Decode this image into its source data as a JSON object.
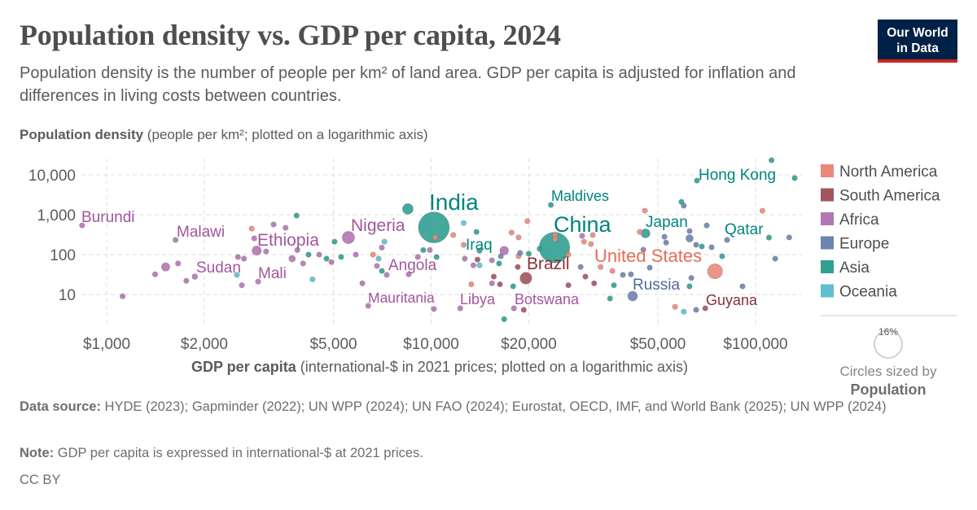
{
  "header": {
    "title": "Population density vs. GDP per capita, 2024",
    "subtitle": "Population density is the number of people per km² of land area. GDP per capita is adjusted for inflation and differences in living costs between countries.",
    "logo_line1": "Our World",
    "logo_line2": "in Data"
  },
  "chart_data": {
    "type": "scatter",
    "title": "Population density vs. GDP per capita, 2024",
    "ylabel_bold": "Population density",
    "ylabel_rest": " (people per km²; plotted on a logarithmic axis)",
    "xlabel_bold": "GDP per capita",
    "xlabel_rest": " (international-$ in 2021 prices; plotted on a logarithmic axis)",
    "x_scale": "log",
    "y_scale": "log",
    "xlim": [
      800,
      140000
    ],
    "ylim": [
      2,
      30000
    ],
    "grid": true,
    "x_ticks": [
      {
        "value": 1000,
        "label": "$1,000"
      },
      {
        "value": 2000,
        "label": "$2,000"
      },
      {
        "value": 5000,
        "label": "$5,000"
      },
      {
        "value": 10000,
        "label": "$10,000"
      },
      {
        "value": 20000,
        "label": "$20,000"
      },
      {
        "value": 50000,
        "label": "$50,000"
      },
      {
        "value": 100000,
        "label": "$100,000"
      }
    ],
    "y_ticks": [
      {
        "value": 10,
        "label": "10"
      },
      {
        "value": 100,
        "label": "100"
      },
      {
        "value": 1000,
        "label": "1,000"
      },
      {
        "value": 10000,
        "label": "10,000"
      }
    ],
    "legend_placement": "right",
    "legend": [
      {
        "region": "North America",
        "color": "#E8897A"
      },
      {
        "region": "South America",
        "color": "#A2545F"
      },
      {
        "region": "Africa",
        "color": "#B276B2"
      },
      {
        "region": "Europe",
        "color": "#6D83B0"
      },
      {
        "region": "Asia",
        "color": "#30A091"
      },
      {
        "region": "Oceania",
        "color": "#5FBFCD"
      }
    ],
    "label_colors": {
      "North America": "#E56E5A",
      "South America": "#883039",
      "Africa": "#A2559C",
      "Europe": "#4C6A9C",
      "Asia": "#00847E",
      "Oceania": "#2C8C9B"
    },
    "size_legend": {
      "value_label": "16%",
      "caption": "Circles sized by",
      "variable": "Population"
    },
    "labeled_points": [
      {
        "name": "Burundi",
        "region": "Africa",
        "gdp": 840,
        "density": 540,
        "pop": 14
      },
      {
        "name": "Malawi",
        "region": "Africa",
        "gdp": 1630,
        "density": 233,
        "pop": 21
      },
      {
        "name": "Ethiopia",
        "region": "Africa",
        "gdp": 2900,
        "density": 126,
        "pop": 132
      },
      {
        "name": "Sudan",
        "region": "Africa",
        "gdp": 1870,
        "density": 28,
        "pop": 50
      },
      {
        "name": "Mali",
        "region": "Africa",
        "gdp": 2930,
        "density": 21,
        "pop": 24
      },
      {
        "name": "Nigeria",
        "region": "Africa",
        "gdp": 5560,
        "density": 268,
        "pop": 233
      },
      {
        "name": "India",
        "region": "Asia",
        "gdp": 10200,
        "density": 480,
        "pop": 1451
      },
      {
        "name": "Angola",
        "region": "Africa",
        "gdp": 8530,
        "density": 32,
        "pop": 38
      },
      {
        "name": "Mauritania",
        "region": "Africa",
        "gdp": 6400,
        "density": 5.2,
        "pop": 5
      },
      {
        "name": "Libya",
        "region": "Africa",
        "gdp": 12300,
        "density": 4.5,
        "pop": 7
      },
      {
        "name": "Botswana",
        "region": "Africa",
        "gdp": 18000,
        "density": 4.5,
        "pop": 2.5
      },
      {
        "name": "Iraq",
        "region": "Asia",
        "gdp": 14100,
        "density": 126,
        "pop": 46
      },
      {
        "name": "Maldives",
        "region": "Asia",
        "gdp": 23400,
        "density": 1760,
        "pop": 0.5
      },
      {
        "name": "China",
        "region": "Asia",
        "gdp": 24000,
        "density": 150,
        "pop": 1419
      },
      {
        "name": "Brazil",
        "region": "South America",
        "gdp": 19600,
        "density": 25.6,
        "pop": 212
      },
      {
        "name": "Japan",
        "region": "Asia",
        "gdp": 45800,
        "density": 340,
        "pop": 124
      },
      {
        "name": "United States",
        "region": "North America",
        "gdp": 75000,
        "density": 38,
        "pop": 345
      },
      {
        "name": "Russia",
        "region": "Europe",
        "gdp": 41800,
        "density": 9.1,
        "pop": 145
      },
      {
        "name": "Guyana",
        "region": "South America",
        "gdp": 70000,
        "density": 4.5,
        "pop": 0.8
      },
      {
        "name": "Qatar",
        "region": "Asia",
        "gdp": 110000,
        "density": 268,
        "pop": 3
      },
      {
        "name": "Hong Kong",
        "region": "Asia",
        "gdp": 66000,
        "density": 7200,
        "pop": 7.5
      }
    ],
    "points": [
      [
        3850,
        950,
        "Asia",
        5
      ],
      [
        3270,
        570,
        "Africa",
        5
      ],
      [
        3560,
        470,
        "Africa",
        5
      ],
      [
        2800,
        450,
        "North America",
        11
      ],
      [
        2850,
        255,
        "Africa",
        5
      ],
      [
        3100,
        120,
        "Africa",
        5
      ],
      [
        3870,
        130,
        "Africa",
        5
      ],
      [
        5040,
        210,
        "Asia",
        5
      ],
      [
        4190,
        100,
        "Asia",
        5
      ],
      [
        4520,
        100,
        "Africa",
        5
      ],
      [
        4760,
        79,
        "Asia",
        5
      ],
      [
        4930,
        65,
        "Africa",
        5
      ],
      [
        5280,
        87,
        "Asia",
        12
      ],
      [
        5860,
        100,
        "Africa",
        12
      ],
      [
        3730,
        79,
        "Africa",
        68
      ],
      [
        4030,
        60,
        "Africa",
        5
      ],
      [
        2540,
        87,
        "Africa",
        5
      ],
      [
        2650,
        79,
        "Africa",
        5
      ],
      [
        1520,
        49,
        "Africa",
        109
      ],
      [
        1660,
        60,
        "Africa",
        5
      ],
      [
        1410,
        32,
        "Africa",
        5
      ],
      [
        1760,
        22,
        "Africa",
        5
      ],
      [
        2520,
        31,
        "Oceania",
        5
      ],
      [
        2610,
        17,
        "Africa",
        5
      ],
      [
        4310,
        24,
        "Oceania",
        2
      ],
      [
        6140,
        19,
        "Africa",
        5
      ],
      [
        1120,
        9,
        "Africa",
        5
      ],
      [
        6620,
        100,
        "North America",
        5
      ],
      [
        6890,
        79,
        "Oceania",
        1
      ],
      [
        7050,
        150,
        "Africa",
        5
      ],
      [
        7180,
        210,
        "Oceania",
        1
      ],
      [
        6810,
        52,
        "Africa",
        5
      ],
      [
        7050,
        39,
        "Asia",
        5
      ],
      [
        7300,
        31,
        "Africa",
        5
      ],
      [
        8480,
        1400,
        "Asia",
        173
      ],
      [
        9460,
        130,
        "Asia",
        5
      ],
      [
        9910,
        130,
        "Africa",
        5
      ],
      [
        10400,
        87,
        "Asia",
        5
      ],
      [
        9100,
        87,
        "Africa",
        5
      ],
      [
        10300,
        270,
        "North America",
        5
      ],
      [
        10200,
        4.3,
        "Africa",
        5
      ],
      [
        12600,
        620,
        "Oceania",
        1
      ],
      [
        11700,
        310,
        "North America",
        5
      ],
      [
        12600,
        175,
        "North America",
        5
      ],
      [
        12700,
        79,
        "Africa",
        5
      ],
      [
        13800,
        370,
        "Asia",
        30
      ],
      [
        13500,
        54,
        "Africa",
        14
      ],
      [
        14100,
        54,
        "Oceania",
        1
      ],
      [
        13900,
        75,
        "South America",
        5
      ],
      [
        15400,
        72,
        "Africa",
        5
      ],
      [
        16200,
        60,
        "Asia",
        40
      ],
      [
        16400,
        91,
        "Europe",
        5
      ],
      [
        16800,
        126,
        "Africa",
        116
      ],
      [
        17700,
        356,
        "North America",
        5
      ],
      [
        18600,
        270,
        "North America",
        5
      ],
      [
        19800,
        690,
        "North America",
        5
      ],
      [
        18600,
        91,
        "North America",
        5
      ],
      [
        18800,
        110,
        "Europe",
        5
      ],
      [
        20000,
        105,
        "Asia",
        5
      ],
      [
        21600,
        140,
        "Asia",
        34
      ],
      [
        18500,
        49,
        "South America",
        5
      ],
      [
        15600,
        28,
        "South America",
        5
      ],
      [
        15400,
        19,
        "Africa",
        5
      ],
      [
        16300,
        18,
        "South America",
        5
      ],
      [
        13300,
        18,
        "North America",
        5
      ],
      [
        17900,
        16,
        "Asia",
        5
      ],
      [
        16800,
        2.4,
        "Asia",
        3
      ],
      [
        19300,
        4.1,
        "South America",
        5
      ],
      [
        24100,
        310,
        "North America",
        5
      ],
      [
        24100,
        245,
        "North America",
        5
      ],
      [
        26500,
        100,
        "North America",
        5
      ],
      [
        29200,
        295,
        "Africa",
        1
      ],
      [
        31500,
        310,
        "North America",
        5
      ],
      [
        29600,
        210,
        "North America",
        5
      ],
      [
        31100,
        184,
        "North America",
        5
      ],
      [
        28900,
        49,
        "Europe",
        5
      ],
      [
        29900,
        28,
        "South America",
        5
      ],
      [
        31800,
        19,
        "South America",
        5
      ],
      [
        26500,
        17,
        "South America",
        5
      ],
      [
        33300,
        49,
        "North America",
        5
      ],
      [
        36200,
        39,
        "North America",
        5
      ],
      [
        39000,
        31,
        "Europe",
        5
      ],
      [
        41300,
        32,
        "Europe",
        5
      ],
      [
        36600,
        17,
        "Asia",
        5
      ],
      [
        35600,
        7.9,
        "Asia",
        5
      ],
      [
        45600,
        1260,
        "North America",
        5
      ],
      [
        44000,
        370,
        "North America",
        5
      ],
      [
        52400,
        280,
        "Europe",
        12
      ],
      [
        53000,
        200,
        "Europe",
        12
      ],
      [
        45100,
        133,
        "Europe",
        5
      ],
      [
        47200,
        47,
        "Europe",
        5
      ],
      [
        59100,
        2100,
        "Asia",
        5
      ],
      [
        60100,
        1680,
        "Europe",
        5
      ],
      [
        62600,
        390,
        "Europe",
        18
      ],
      [
        62600,
        256,
        "Europe",
        84
      ],
      [
        65600,
        176,
        "Europe",
        5
      ],
      [
        68300,
        160,
        "Asia",
        5
      ],
      [
        73200,
        153,
        "Europe",
        5
      ],
      [
        70700,
        540,
        "Europe",
        5
      ],
      [
        78900,
        91,
        "Asia",
        5
      ],
      [
        81700,
        233,
        "Europe",
        5
      ],
      [
        63400,
        26,
        "Europe",
        10
      ],
      [
        62600,
        16,
        "Asia",
        5
      ],
      [
        56500,
        4.9,
        "North America",
        5
      ],
      [
        60100,
        3.7,
        "Oceania",
        5
      ],
      [
        65600,
        4.1,
        "Europe",
        5
      ],
      [
        91200,
        16,
        "Europe",
        5
      ],
      [
        105000,
        1260,
        "North America",
        5
      ],
      [
        112000,
        23300,
        "Asia",
        5
      ],
      [
        132000,
        8300,
        "Asia",
        5
      ],
      [
        127000,
        270,
        "Europe",
        5
      ],
      [
        115000,
        79,
        "Europe",
        5
      ]
    ]
  },
  "footer": {
    "source_label": "Data source:",
    "source_text": " HYDE (2023); Gapminder (2022); UN WPP (2024); UN FAO (2024); Eurostat, OECD, IMF, and World Bank (2025); UN WPP (2024)",
    "note_label": "Note:",
    "note_text": " GDP per capita is expressed in international-$ at 2021 prices.",
    "license": "CC BY"
  }
}
